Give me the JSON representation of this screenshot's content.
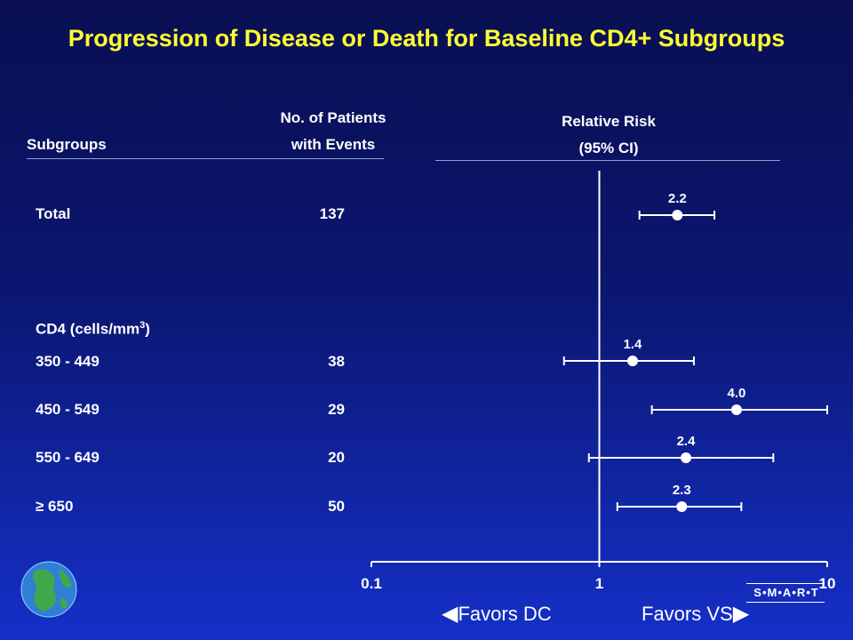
{
  "title": "Progression of Disease or Death for Baseline CD4+ Subgroups",
  "headers": {
    "subgroups": "Subgroups",
    "patients_line1": "No. of Patients",
    "patients_line2": "with  Events",
    "rr_line1": "Relative Risk",
    "rr_line2": "(95% CI)"
  },
  "section_label": "CD4 (cells/mm",
  "section_sup": "3",
  "section_close": ")",
  "rows": [
    {
      "label": "Total",
      "events": "137"
    },
    {
      "label": "350 - 449",
      "events": "38"
    },
    {
      "label": "450 - 549",
      "events": "29"
    },
    {
      "label": "550 - 649",
      "events": "20"
    },
    {
      "label": "≥ 650",
      "events": "50"
    }
  ],
  "favors_left": "Favors DC",
  "favors_right": "Favors VS",
  "logo_text": "S•M•A•R•T",
  "colors": {
    "title": "#ffff33",
    "text": "#ffffff",
    "background_top": "#0a0f52",
    "background_bottom": "#1530c8"
  },
  "icons": {
    "globe": "globe-icon",
    "left_arrow": "left-triangle-icon",
    "right_arrow": "right-triangle-icon"
  },
  "chart_data": {
    "type": "forest",
    "x_scale": "log",
    "xlim": [
      0.1,
      10
    ],
    "x_ticks": [
      "0.1",
      "1",
      "10"
    ],
    "reference_line": 1,
    "points": [
      {
        "subgroup": "Total",
        "rr": 2.2,
        "rr_label": "2.2",
        "ci": [
          1.5,
          3.2
        ]
      },
      {
        "subgroup": "350 - 449",
        "rr": 1.4,
        "rr_label": "1.4",
        "ci": [
          0.7,
          2.6
        ]
      },
      {
        "subgroup": "450 - 549",
        "rr": 4.0,
        "rr_label": "4.0",
        "ci": [
          1.7,
          10
        ]
      },
      {
        "subgroup": "550 - 649",
        "rr": 2.4,
        "rr_label": "2.4",
        "ci": [
          0.9,
          5.8
        ]
      },
      {
        "subgroup": "≥ 650",
        "rr": 2.3,
        "rr_label": "2.3",
        "ci": [
          1.2,
          4.2
        ]
      }
    ]
  }
}
